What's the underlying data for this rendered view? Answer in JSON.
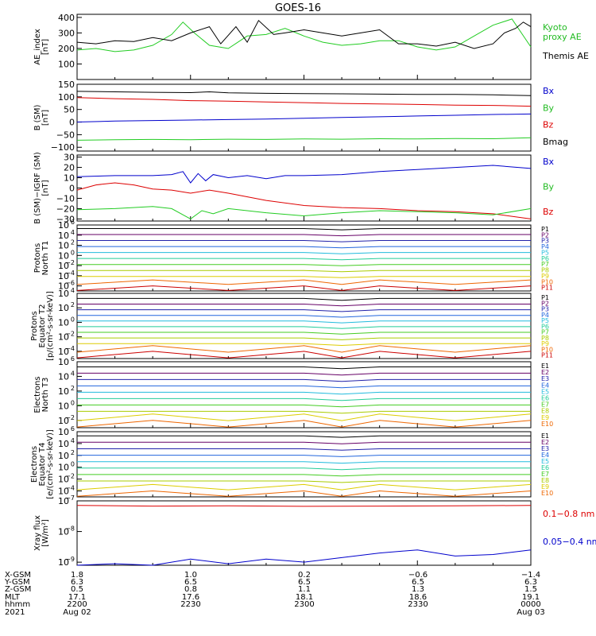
{
  "title": "GOES-16",
  "colors": {
    "black": "#000000",
    "red": "#dd0000",
    "green": "#22cc22",
    "blue": "#0000cc",
    "legend_green": "#22bb22"
  },
  "panels": [
    {
      "id": "ae",
      "ylabel_lines": [
        "AE_index",
        "[nT]"
      ],
      "yticks": [
        "400",
        "300",
        "200",
        "100"
      ],
      "scale": "linear",
      "ylim": [
        0,
        420
      ],
      "legend": [
        {
          "text": "Kyoto\nproxy AE",
          "color": "green"
        },
        {
          "text": "Themis AE",
          "color": "black"
        }
      ]
    },
    {
      "id": "b_sm",
      "ylabel_lines": [
        "B (SM)",
        "[nT]"
      ],
      "yticks": [
        "150",
        "100",
        "50",
        "0",
        "−50",
        "−100"
      ],
      "scale": "linear",
      "ylim": [
        -115,
        150
      ],
      "legend": [
        {
          "text": "Bx",
          "color": "blue"
        },
        {
          "text": "By",
          "color": "green"
        },
        {
          "text": "Bz",
          "color": "red"
        },
        {
          "text": "Bmag",
          "color": "black"
        }
      ]
    },
    {
      "id": "b_igrf",
      "ylabel_lines": [
        "B (SM)−IGRF (SM)",
        "[nT]"
      ],
      "yticks": [
        "30",
        "20",
        "10",
        "0",
        "−10",
        "−20",
        "−30"
      ],
      "scale": "linear",
      "ylim": [
        -32,
        32
      ],
      "legend": [
        {
          "text": "Bx",
          "color": "blue"
        },
        {
          "text": "By",
          "color": "green"
        },
        {
          "text": "Bz",
          "color": "red"
        }
      ]
    },
    {
      "id": "p_north",
      "ylabel_lines": [
        "Protons",
        "North T1"
      ],
      "yticks_exp": [
        "6",
        "4",
        "2",
        "0",
        "−2",
        "−4",
        "−6"
      ],
      "scale": "log",
      "ylim_exp": [
        -7,
        6
      ],
      "legend_labels": [
        "P1",
        "P2",
        "P3",
        "P4",
        "P5",
        "P6",
        "P7",
        "P8",
        "P9",
        "P10",
        "P11"
      ]
    },
    {
      "id": "p_equator",
      "ylabel_lines": [
        "Protons",
        "Equator T2",
        "[p/(cm²-s-sr-keV)]"
      ],
      "yticks_exp": [
        "4",
        "2",
        "0",
        "−2",
        "−4"
      ],
      "scale": "log",
      "ylim_exp": [
        -5,
        4
      ],
      "legend_labels": [
        "P1",
        "P2",
        "P3",
        "P4",
        "P5",
        "P6",
        "P7",
        "P8",
        "P9",
        "P10",
        "P11"
      ]
    },
    {
      "id": "e_north",
      "ylabel_lines": [
        "Electrons",
        "North T3"
      ],
      "yticks_exp": [
        "6",
        "4",
        "2",
        "0",
        "−2"
      ],
      "scale": "log",
      "ylim_exp": [
        -3,
        6
      ],
      "legend_labels": [
        "E1",
        "E2",
        "E3",
        "E4",
        "E5",
        "E6",
        "E7",
        "E8",
        "E9",
        "E10"
      ]
    },
    {
      "id": "e_equator",
      "ylabel_lines": [
        "Electrons",
        "Equator T4",
        "[e/(cm²-s-sr-keV)]"
      ],
      "yticks_exp": [
        "6",
        "4",
        "2",
        "0",
        "−2",
        "−4"
      ],
      "scale": "log",
      "ylim_exp": [
        -5,
        6
      ],
      "legend_labels": [
        "E1",
        "E2",
        "E3",
        "E4",
        "E5",
        "E6",
        "E7",
        "E8",
        "E9",
        "E10"
      ]
    },
    {
      "id": "xray",
      "ylabel_lines": [
        "Xray flux",
        "[W/m²]"
      ],
      "yticks_exp": [
        "−7",
        "−8",
        "−9"
      ],
      "scale": "log",
      "ylim_exp": [
        -9.1,
        -7
      ],
      "legend": [
        {
          "text": "0.1−0.8 nm",
          "color": "red"
        },
        {
          "text": "0.05−0.4 nm",
          "color": "blue"
        }
      ]
    }
  ],
  "footer": {
    "row_labels": [
      "X-GSM",
      "Y-GSM",
      "Z-GSM",
      "MLT",
      "hhmm",
      "2021"
    ],
    "columns": [
      [
        "1.8",
        "6.3",
        "0.5",
        "17.1",
        "2200",
        "Aug 02"
      ],
      [
        "1.0",
        "6.5",
        "0.8",
        "17.6",
        "2230",
        ""
      ],
      [
        "0.2",
        "6.5",
        "1.1",
        "18.1",
        "2300",
        ""
      ],
      [
        "−0.6",
        "6.5",
        "1.3",
        "18.6",
        "2330",
        ""
      ],
      [
        "−1.4",
        "6.3",
        "1.5",
        "19.1",
        "0000",
        "Aug 03"
      ]
    ]
  },
  "chart_data": {
    "type": "line",
    "x_unit": "minutes after 2021-08-02 22:00 UT",
    "xlim": [
      0,
      120
    ],
    "series": {
      "ae_themis": {
        "x": [
          0,
          5,
          10,
          15,
          20,
          25,
          30,
          35,
          38,
          42,
          45,
          48,
          52,
          55,
          60,
          65,
          70,
          75,
          80,
          85,
          90,
          95,
          100,
          105,
          110,
          113,
          116,
          118,
          120
        ],
        "y": [
          240,
          230,
          250,
          245,
          270,
          250,
          300,
          340,
          230,
          340,
          240,
          380,
          290,
          300,
          320,
          300,
          280,
          300,
          320,
          230,
          230,
          215,
          240,
          200,
          230,
          300,
          330,
          370,
          340
        ]
      },
      "ae_kyoto": {
        "x": [
          0,
          5,
          10,
          15,
          20,
          25,
          28,
          31,
          35,
          40,
          45,
          50,
          55,
          60,
          65,
          70,
          75,
          80,
          85,
          90,
          95,
          100,
          105,
          110,
          115,
          120
        ],
        "y": [
          190,
          200,
          180,
          190,
          220,
          290,
          370,
          300,
          220,
          200,
          280,
          290,
          330,
          280,
          240,
          220,
          230,
          250,
          250,
          210,
          190,
          210,
          280,
          350,
          390,
          210
        ]
      },
      "b_bx": {
        "x": [
          0,
          10,
          20,
          30,
          40,
          50,
          60,
          70,
          80,
          90,
          100,
          110,
          120
        ],
        "y": [
          0,
          4,
          6,
          8,
          10,
          12,
          15,
          18,
          21,
          24,
          27,
          30,
          32
        ]
      },
      "b_by": {
        "x": [
          0,
          10,
          20,
          30,
          40,
          50,
          60,
          70,
          80,
          90,
          100,
          110,
          120
        ],
        "y": [
          -72,
          -70,
          -69,
          -70,
          -68,
          -69,
          -67,
          -68,
          -66,
          -67,
          -65,
          -66,
          -62
        ]
      },
      "b_bz": {
        "x": [
          0,
          10,
          20,
          30,
          40,
          50,
          60,
          70,
          80,
          90,
          100,
          110,
          120
        ],
        "y": [
          97,
          93,
          90,
          85,
          83,
          80,
          77,
          74,
          72,
          70,
          67,
          66,
          63
        ]
      },
      "b_mag": {
        "x": [
          0,
          10,
          20,
          30,
          35,
          40,
          50,
          60,
          70,
          80,
          90,
          100,
          110,
          120
        ],
        "y": [
          122,
          120,
          118,
          117,
          120,
          116,
          114,
          113,
          112,
          111,
          110,
          110,
          108,
          105
        ]
      },
      "igrf_bx": {
        "x": [
          0,
          10,
          20,
          25,
          28,
          30,
          32,
          34,
          36,
          40,
          45,
          50,
          55,
          60,
          70,
          80,
          90,
          100,
          110,
          120
        ],
        "y": [
          11,
          12,
          12,
          13,
          16,
          5,
          14,
          7,
          13,
          10,
          12,
          9,
          12,
          12,
          13,
          16,
          18,
          20,
          22,
          19
        ]
      },
      "igrf_by": {
        "x": [
          0,
          10,
          20,
          25,
          30,
          33,
          36,
          40,
          50,
          60,
          70,
          80,
          90,
          100,
          110,
          120
        ],
        "y": [
          -21,
          -20,
          -18,
          -20,
          -30,
          -22,
          -25,
          -20,
          -24,
          -27,
          -24,
          -22,
          -23,
          -24,
          -26,
          -20
        ]
      },
      "igrf_bz": {
        "x": [
          0,
          5,
          10,
          15,
          20,
          25,
          30,
          35,
          40,
          50,
          60,
          70,
          80,
          90,
          100,
          110,
          120
        ],
        "y": [
          -2,
          3,
          5,
          3,
          -1,
          -2,
          -5,
          -2,
          -5,
          -12,
          -17,
          -19,
          -20,
          -22,
          -23,
          -25,
          -30
        ]
      },
      "xray_long": {
        "x": [
          0,
          20,
          40,
          60,
          80,
          100,
          120
        ],
        "y_exp": [
          -7.15,
          -7.17,
          -7.16,
          -7.18,
          -7.17,
          -7.16,
          -7.15
        ]
      },
      "xray_short": {
        "x": [
          0,
          10,
          20,
          30,
          40,
          50,
          60,
          70,
          80,
          90,
          100,
          110,
          120
        ],
        "y_exp": [
          -9.1,
          -9.05,
          -9.1,
          -8.9,
          -9.05,
          -8.9,
          -9.0,
          -8.85,
          -8.7,
          -8.6,
          -8.8,
          -8.75,
          -8.6
        ]
      }
    }
  }
}
